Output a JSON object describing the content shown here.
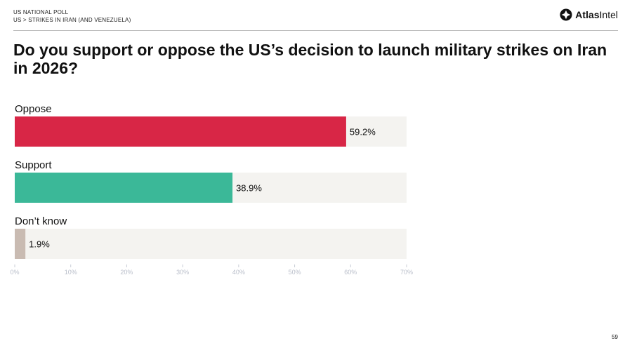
{
  "header": {
    "line1": "US NATIONAL POLL",
    "line2": "US > STRIKES IN IRAN (AND VENEZUELA)"
  },
  "brand": {
    "name_bold": "Atlas",
    "name_light": "Intel"
  },
  "page_number": "59",
  "chart_data": {
    "type": "bar",
    "orientation": "horizontal",
    "title": "Do you support or oppose the US’s decision to launch military strikes on Iran in 2026?",
    "categories": [
      "Oppose",
      "Support",
      "Don’t know"
    ],
    "values": [
      59.2,
      38.9,
      1.9
    ],
    "value_labels": [
      "59.2%",
      "38.9%",
      "1.9%"
    ],
    "colors": [
      "#d82646",
      "#3bb898",
      "#c9bbb2"
    ],
    "track_color": "#f4f3f0",
    "xlim": [
      0,
      70
    ],
    "xticks": [
      0,
      10,
      20,
      30,
      40,
      50,
      60,
      70
    ],
    "xtick_labels": [
      "0%",
      "10%",
      "20%",
      "30%",
      "40%",
      "50%",
      "60%",
      "70%"
    ],
    "grid": false,
    "legend": "none"
  }
}
